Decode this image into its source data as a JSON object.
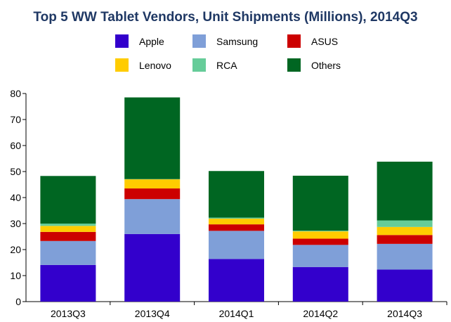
{
  "chart_data": {
    "type": "bar",
    "stacked": true,
    "title": "Top 5 WW Tablet Vendors, Unit Shipments (Millions), 2014Q3",
    "xlabel": "",
    "ylabel": "",
    "categories": [
      "2013Q3",
      "2013Q4",
      "2014Q1",
      "2014Q2",
      "2014Q3"
    ],
    "ylim": [
      0,
      80
    ],
    "yticks": [
      0,
      10,
      20,
      30,
      40,
      50,
      60,
      70,
      80
    ],
    "grid": false,
    "legend_position": "top",
    "series": [
      {
        "name": "Apple",
        "color": "#3300cc",
        "values": [
          14.1,
          26.0,
          16.4,
          13.3,
          12.3
        ]
      },
      {
        "name": "Samsung",
        "color": "#7f9fd8",
        "values": [
          9.2,
          13.4,
          10.8,
          8.5,
          9.9
        ]
      },
      {
        "name": "ASUS",
        "color": "#cc0000",
        "values": [
          3.5,
          4.1,
          2.5,
          2.4,
          3.4
        ]
      },
      {
        "name": "Lenovo",
        "color": "#ffcc00",
        "values": [
          2.3,
          3.5,
          2.2,
          2.8,
          3.1
        ]
      },
      {
        "name": "RCA",
        "color": "#66cc99",
        "values": [
          0.9,
          0.1,
          0.4,
          0.3,
          2.5
        ]
      },
      {
        "name": "Others",
        "color": "#006622",
        "values": [
          18.3,
          31.4,
          17.9,
          21.1,
          22.6
        ]
      }
    ]
  }
}
